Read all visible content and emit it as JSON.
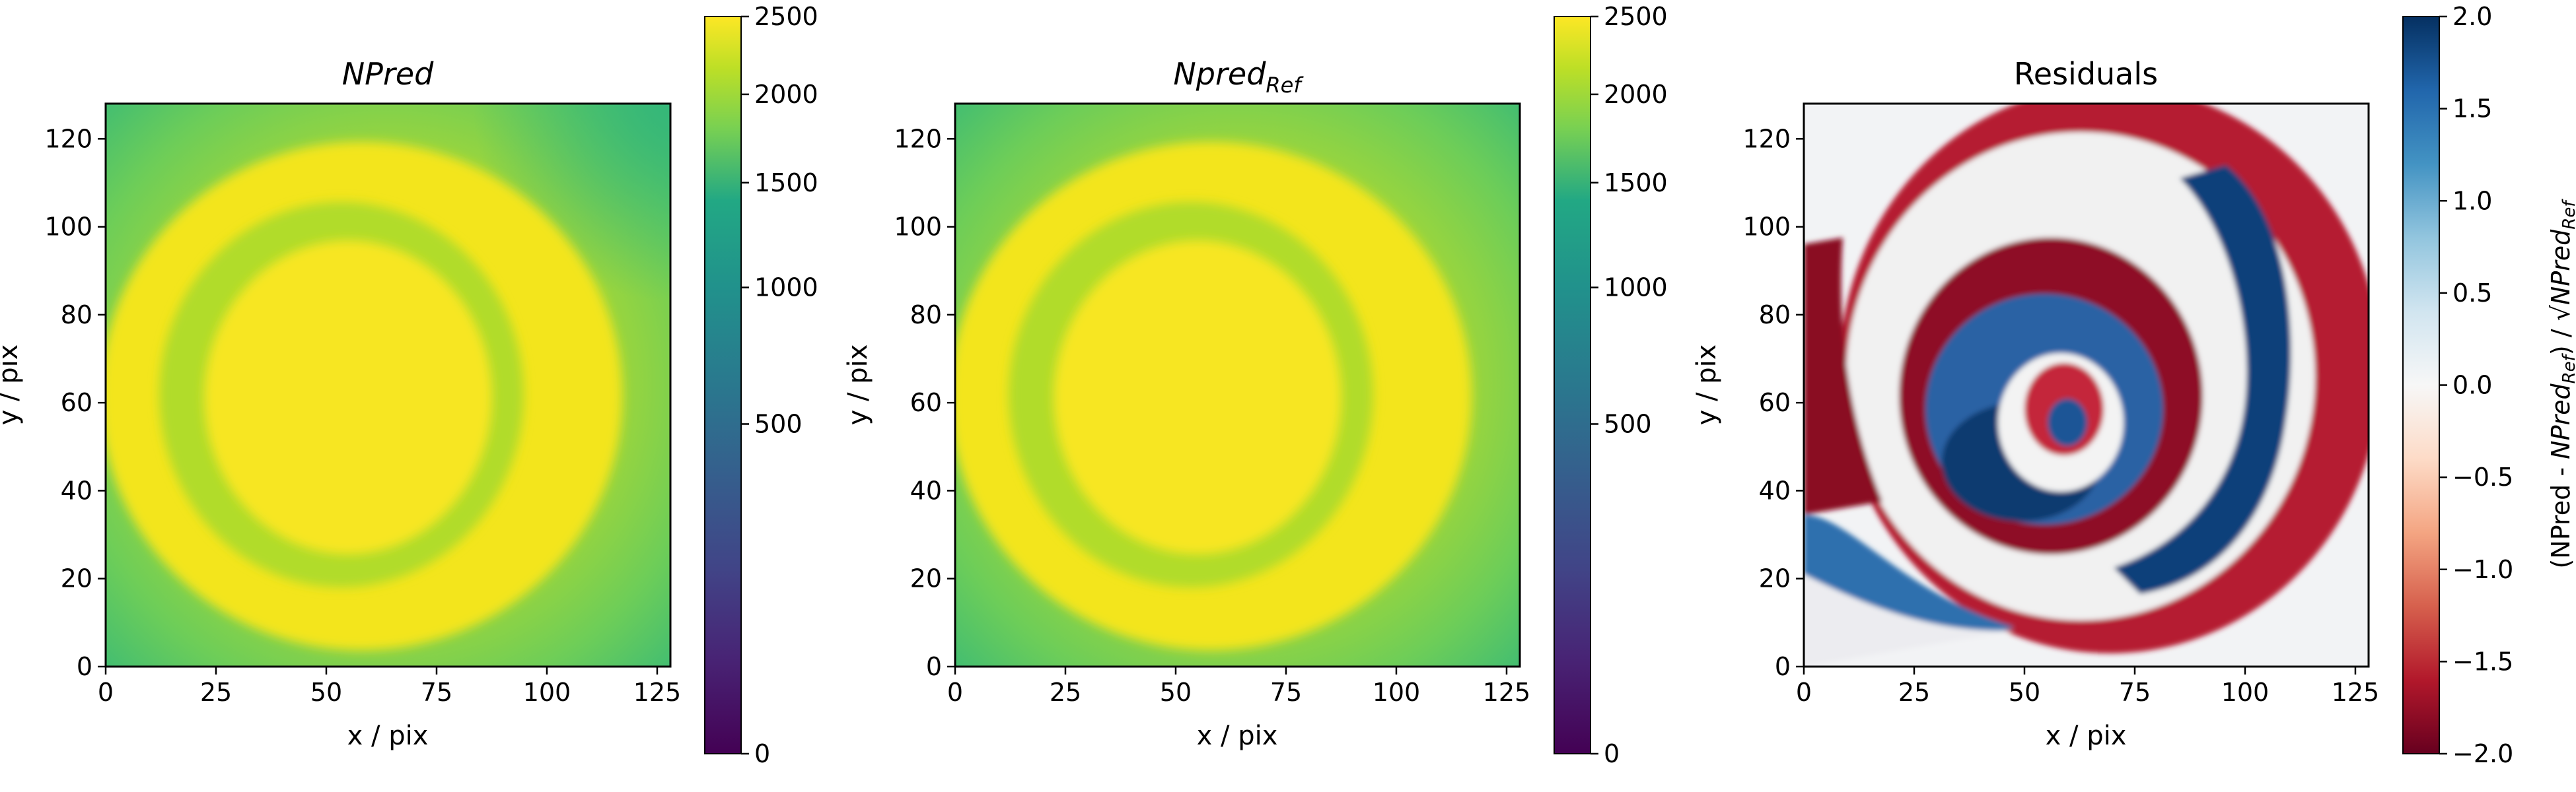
{
  "chart_data": [
    {
      "type": "heatmap",
      "title": "NPred",
      "xlabel": "x / pix",
      "ylabel": "y / pix",
      "xlim": [
        0,
        128
      ],
      "ylim": [
        0,
        128
      ],
      "xticks": [
        0,
        25,
        50,
        75,
        100,
        125
      ],
      "yticks": [
        0,
        20,
        40,
        60,
        80,
        100,
        120
      ],
      "colormap": "viridis",
      "colorbar": {
        "ticks": [
          0,
          500,
          1000,
          1500,
          2000,
          2500
        ],
        "range": [
          0,
          2500
        ],
        "scale": "sqrt"
      },
      "grid": false,
      "description_values": {
        "outer_ring_value": 2500,
        "inner_ring_value": 1800,
        "center_value": 2500,
        "corner_value": 1500
      }
    },
    {
      "type": "heatmap",
      "title": "Npred",
      "title_subscript": "Ref",
      "xlabel": "x / pix",
      "ylabel": "y / pix",
      "xlim": [
        0,
        128
      ],
      "ylim": [
        0,
        128
      ],
      "xticks": [
        0,
        25,
        50,
        75,
        100,
        125
      ],
      "yticks": [
        0,
        20,
        40,
        60,
        80,
        100,
        120
      ],
      "colormap": "viridis",
      "colorbar": {
        "ticks": [
          0,
          500,
          1000,
          1500,
          2000,
          2500
        ],
        "range": [
          0,
          2500
        ],
        "scale": "sqrt"
      },
      "grid": false
    },
    {
      "type": "heatmap",
      "title": "Residuals",
      "xlabel": "x / pix",
      "ylabel": "y / pix",
      "xlim": [
        0,
        128
      ],
      "ylim": [
        0,
        128
      ],
      "xticks": [
        0,
        25,
        50,
        75,
        100,
        125
      ],
      "yticks": [
        0,
        20,
        40,
        60,
        80,
        100,
        120
      ],
      "colormap": "RdBu",
      "colorbar": {
        "ticks": [
          2.0,
          1.5,
          1.0,
          0.5,
          0.0,
          -0.5,
          -1.0,
          -1.5,
          -2.0
        ],
        "tick_labels": [
          "2.0",
          "1.5",
          "1.0",
          "0.5",
          "0.0",
          "−0.5",
          "−1.0",
          "−1.5",
          "−2.0"
        ],
        "range": [
          -2.0,
          2.0
        ],
        "label_parts": [
          "(NPred - ",
          "NPred",
          "Ref",
          ") / √",
          "NPred",
          "Ref"
        ]
      },
      "grid": false
    }
  ]
}
